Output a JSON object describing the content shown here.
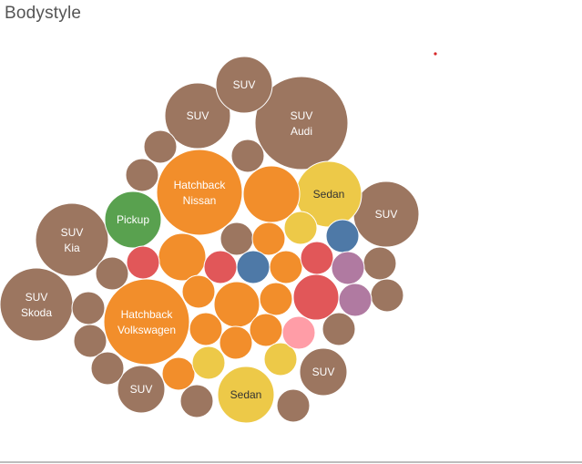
{
  "chart_data": {
    "type": "bubble",
    "title": "Bodystyle",
    "colors": {
      "brown": "#9c7660",
      "orange": "#f28e2b",
      "yellow": "#edc948",
      "green": "#59a14f",
      "red": "#e15759",
      "purple": "#b07aa1",
      "pink": "#ff9da7",
      "blue": "#4e79a7",
      "teal": "#76b7b2",
      "light_text": "#ffffff",
      "dark_text": "#333333",
      "marker": "#d62728"
    },
    "bubbles": [
      {
        "label": "SUV",
        "sublabel": "Audi",
        "color": "brown",
        "size": 51
      },
      {
        "label": "Hatchback",
        "sublabel": "Nissan",
        "color": "orange",
        "size": 47
      },
      {
        "label": "Hatchback",
        "sublabel": "Volkswagen",
        "color": "orange",
        "size": 47
      },
      {
        "label": "SUV",
        "sublabel": "Kia",
        "color": "brown",
        "size": 40
      },
      {
        "label": "SUV",
        "sublabel": "Skoda",
        "color": "brown",
        "size": 40
      },
      {
        "label": "SUV",
        "sublabel": "",
        "color": "brown",
        "size": 36
      },
      {
        "label": "SUV",
        "sublabel": "",
        "color": "brown",
        "size": 36
      },
      {
        "label": "Sedan",
        "sublabel": "",
        "color": "yellow",
        "size": 36
      },
      {
        "label": "SUV",
        "sublabel": "",
        "color": "brown",
        "size": 31
      },
      {
        "label": "Sedan",
        "sublabel": "",
        "color": "yellow",
        "size": 31
      },
      {
        "label": "Pickup",
        "sublabel": "",
        "color": "green",
        "size": 31
      },
      {
        "label": "",
        "sublabel": "",
        "color": "orange",
        "size": 31
      },
      {
        "label": "SUV",
        "sublabel": "",
        "color": "brown",
        "size": 26
      },
      {
        "label": "SUV",
        "sublabel": "",
        "color": "brown",
        "size": 26
      },
      {
        "label": "",
        "sublabel": "",
        "color": "orange",
        "size": 26
      },
      {
        "label": "",
        "sublabel": "",
        "color": "orange",
        "size": 25
      },
      {
        "label": "",
        "sublabel": "",
        "color": "red",
        "size": 25
      },
      {
        "label": "",
        "sublabel": "",
        "color": "brown",
        "size": 18
      },
      {
        "label": "",
        "sublabel": "",
        "color": "brown",
        "size": 18
      },
      {
        "label": "",
        "sublabel": "",
        "color": "brown",
        "size": 18
      },
      {
        "label": "",
        "sublabel": "",
        "color": "brown",
        "size": 18
      },
      {
        "label": "",
        "sublabel": "",
        "color": "brown",
        "size": 18
      },
      {
        "label": "",
        "sublabel": "",
        "color": "brown",
        "size": 18
      },
      {
        "label": "",
        "sublabel": "",
        "color": "brown",
        "size": 18
      },
      {
        "label": "",
        "sublabel": "",
        "color": "brown",
        "size": 18
      },
      {
        "label": "",
        "sublabel": "",
        "color": "brown",
        "size": 18
      },
      {
        "label": "",
        "sublabel": "",
        "color": "brown",
        "size": 18
      },
      {
        "label": "",
        "sublabel": "",
        "color": "brown",
        "size": 18
      },
      {
        "label": "",
        "sublabel": "",
        "color": "brown",
        "size": 18
      },
      {
        "label": "",
        "sublabel": "",
        "color": "brown",
        "size": 18
      },
      {
        "label": "",
        "sublabel": "",
        "color": "orange",
        "size": 18
      },
      {
        "label": "",
        "sublabel": "",
        "color": "orange",
        "size": 18
      },
      {
        "label": "",
        "sublabel": "",
        "color": "orange",
        "size": 18
      },
      {
        "label": "",
        "sublabel": "",
        "color": "orange",
        "size": 18
      },
      {
        "label": "",
        "sublabel": "",
        "color": "orange",
        "size": 18
      },
      {
        "label": "",
        "sublabel": "",
        "color": "orange",
        "size": 18
      },
      {
        "label": "",
        "sublabel": "",
        "color": "orange",
        "size": 18
      },
      {
        "label": "",
        "sublabel": "",
        "color": "orange",
        "size": 18
      },
      {
        "label": "",
        "sublabel": "",
        "color": "yellow",
        "size": 18
      },
      {
        "label": "",
        "sublabel": "",
        "color": "yellow",
        "size": 18
      },
      {
        "label": "",
        "sublabel": "",
        "color": "yellow",
        "size": 18
      },
      {
        "label": "",
        "sublabel": "",
        "color": "red",
        "size": 18
      },
      {
        "label": "",
        "sublabel": "",
        "color": "red",
        "size": 18
      },
      {
        "label": "",
        "sublabel": "",
        "color": "red",
        "size": 18
      },
      {
        "label": "",
        "sublabel": "",
        "color": "blue",
        "size": 18
      },
      {
        "label": "",
        "sublabel": "",
        "color": "blue",
        "size": 18
      },
      {
        "label": "",
        "sublabel": "",
        "color": "purple",
        "size": 18
      },
      {
        "label": "",
        "sublabel": "",
        "color": "purple",
        "size": 18
      },
      {
        "label": "",
        "sublabel": "",
        "color": "pink",
        "size": 18
      },
      {
        "label": "",
        "sublabel": "",
        "color": "teal",
        "size": 18
      }
    ]
  }
}
